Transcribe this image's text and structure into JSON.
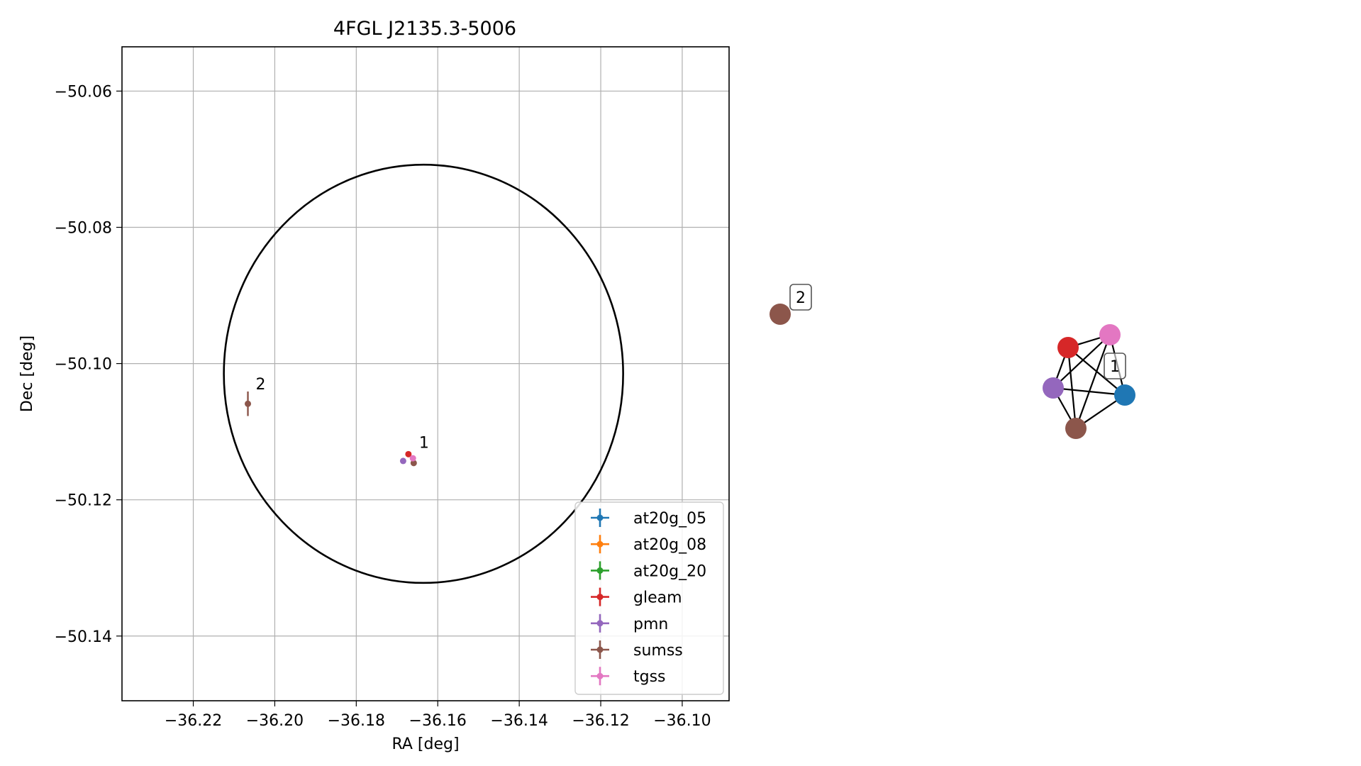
{
  "chart_data": [
    {
      "type": "scatter",
      "title": "4FGL J2135.3-5006",
      "xlabel": "RA [deg]",
      "ylabel": "Dec [deg]",
      "xlim": [
        -36.2375,
        -36.0885
      ],
      "ylim": [
        -50.1495,
        -50.0535
      ],
      "xticks": [
        -36.22,
        -36.2,
        -36.18,
        -36.16,
        -36.14,
        -36.12,
        -36.1
      ],
      "xtick_labels": [
        "−36.22",
        "−36.20",
        "−36.18",
        "−36.16",
        "−36.14",
        "−36.12",
        "−36.10"
      ],
      "yticks": [
        -50.06,
        -50.08,
        -50.1,
        -50.12,
        -50.14
      ],
      "ytick_labels": [
        "−50.06",
        "−50.08",
        "−50.10",
        "−50.12",
        "−50.14"
      ],
      "grid": true,
      "legend_placement": "lower-right",
      "ellipse": {
        "center_ra": -36.1635,
        "center_dec": -50.1015,
        "radius_ra": 0.049,
        "radius_dec": 0.0307,
        "color": "#000000"
      },
      "series": [
        {
          "name": "at20g_05",
          "color": "#1f77b4",
          "points": []
        },
        {
          "name": "at20g_08",
          "color": "#ff7f0e",
          "points": []
        },
        {
          "name": "at20g_20",
          "color": "#2ca02c",
          "points": []
        },
        {
          "name": "gleam",
          "color": "#d62728",
          "points": [
            {
              "x": -36.1672,
              "y": -50.1133,
              "xerr": 0.0,
              "yerr": 0.0
            }
          ]
        },
        {
          "name": "pmn",
          "color": "#9467bd",
          "points": [
            {
              "x": -36.1685,
              "y": -50.1143,
              "xerr": 0.0,
              "yerr": 0.0
            }
          ]
        },
        {
          "name": "sumss",
          "color": "#8c564b",
          "points": [
            {
              "x": -36.1659,
              "y": -50.1146,
              "xerr": 0.0,
              "yerr": 0.0
            },
            {
              "x": -36.2066,
              "y": -50.1059,
              "xerr": 0.0007,
              "yerr": 0.0018
            }
          ]
        },
        {
          "name": "tgss",
          "color": "#e377c2",
          "points": [
            {
              "x": -36.1661,
              "y": -50.1139,
              "xerr": 0.0,
              "yerr": 0.0
            }
          ]
        }
      ],
      "annotations": [
        {
          "text": "1",
          "x": -36.1651,
          "y": -50.1127
        },
        {
          "text": "2",
          "x": -36.2052,
          "y": -50.1041
        }
      ]
    },
    {
      "type": "network",
      "nodes": [
        {
          "id": "sumss-2",
          "color": "#8c564b",
          "label": "2"
        },
        {
          "id": "gleam",
          "color": "#d62728"
        },
        {
          "id": "tgss",
          "color": "#e377c2"
        },
        {
          "id": "pmn",
          "color": "#9467bd"
        },
        {
          "id": "at20g",
          "color": "#1f77b4"
        },
        {
          "id": "sumss-1",
          "color": "#8c564b"
        }
      ],
      "edges": [
        [
          "gleam",
          "tgss"
        ],
        [
          "gleam",
          "pmn"
        ],
        [
          "gleam",
          "at20g"
        ],
        [
          "gleam",
          "sumss-1"
        ],
        [
          "tgss",
          "pmn"
        ],
        [
          "tgss",
          "at20g"
        ],
        [
          "tgss",
          "sumss-1"
        ],
        [
          "pmn",
          "at20g"
        ],
        [
          "pmn",
          "sumss-1"
        ],
        [
          "at20g",
          "sumss-1"
        ]
      ],
      "group_labels": [
        "1"
      ]
    }
  ]
}
